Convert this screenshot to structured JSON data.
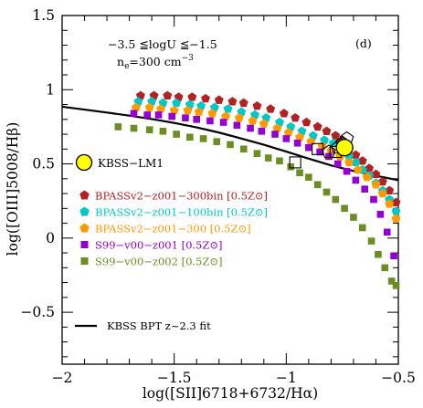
{
  "chart_data": {
    "type": "scatter",
    "xlabel": "log([SII]6718+6732/Hα)",
    "ylabel": "log([OIII]5008/Hβ)",
    "xlim": [
      -2.0,
      -0.5
    ],
    "ylim": [
      -0.85,
      1.5
    ],
    "xticks": [
      "−2",
      "−1.5",
      "−1",
      "−0.5"
    ],
    "yticks": [
      "−0.5",
      "0",
      "0.5",
      "1",
      "1.5"
    ],
    "annotations": {
      "logU": "−3.5 ≦logU ≦−1.5",
      "density": "ne=300 cm⁻³",
      "panel": "(d)"
    },
    "kbss_point": {
      "name": "KBSS−LM1",
      "x": -0.74,
      "y": 0.61,
      "color": "#ffff00"
    },
    "fit_line": {
      "name": "KBSS BPT z~2.3 fit",
      "color": "#000000",
      "x": [
        -2.0,
        -1.9,
        -1.8,
        -1.7,
        -1.6,
        -1.5,
        -1.4,
        -1.3,
        -1.2,
        -1.1,
        -1.0,
        -0.9,
        -0.8,
        -0.7,
        -0.6,
        -0.5
      ],
      "y": [
        0.885,
        0.866,
        0.846,
        0.825,
        0.802,
        0.776,
        0.746,
        0.711,
        0.671,
        0.629,
        0.583,
        0.535,
        0.49,
        0.452,
        0.42,
        0.39
      ]
    },
    "series": [
      {
        "name": "BPASSv2−z001−300bin [0.5Z⊙]",
        "color": "#b22222",
        "marker": "pentagon",
        "x": [
          -1.65,
          -1.59,
          -1.53,
          -1.48,
          -1.42,
          -1.36,
          -1.3,
          -1.24,
          -1.19,
          -1.13,
          -1.07,
          -1.01,
          -0.96,
          -0.91,
          -0.86,
          -0.82,
          -0.78,
          -0.75,
          -0.72,
          -0.69,
          -0.66,
          -0.63,
          -0.6,
          -0.57,
          -0.54,
          -0.51,
          -0.49
        ],
        "y": [
          0.96,
          0.96,
          0.96,
          0.95,
          0.95,
          0.94,
          0.93,
          0.92,
          0.91,
          0.89,
          0.87,
          0.84,
          0.81,
          0.78,
          0.75,
          0.72,
          0.69,
          0.66,
          0.6,
          0.56,
          0.52,
          0.47,
          0.43,
          0.38,
          0.32,
          0.24,
          0.14
        ]
      },
      {
        "name": "BPASSv2−z001−100bin [0.5Z⊙]",
        "color": "#00c8c8",
        "marker": "pentagon",
        "x": [
          -1.66,
          -1.6,
          -1.55,
          -1.49,
          -1.43,
          -1.38,
          -1.32,
          -1.26,
          -1.2,
          -1.14,
          -1.09,
          -1.03,
          -0.98,
          -0.93,
          -0.88,
          -0.83,
          -0.79,
          -0.75,
          -0.72,
          -0.69,
          -0.66,
          -0.63,
          -0.6,
          -0.57,
          -0.54,
          -0.51,
          -0.49
        ],
        "y": [
          0.92,
          0.92,
          0.91,
          0.91,
          0.9,
          0.89,
          0.88,
          0.87,
          0.85,
          0.83,
          0.81,
          0.78,
          0.75,
          0.72,
          0.69,
          0.66,
          0.64,
          0.6,
          0.55,
          0.51,
          0.46,
          0.42,
          0.37,
          0.32,
          0.26,
          0.18,
          0.08
        ]
      },
      {
        "name": "BPASSv2−z001−300 [0.5Z⊙]",
        "color": "#ff9900",
        "marker": "pentagon",
        "x": [
          -1.67,
          -1.61,
          -1.56,
          -1.5,
          -1.44,
          -1.39,
          -1.33,
          -1.27,
          -1.21,
          -1.15,
          -1.1,
          -1.04,
          -0.99,
          -0.94,
          -0.89,
          -0.84,
          -0.8,
          -0.76,
          -0.72,
          -0.68,
          -0.64,
          -0.6,
          -0.57,
          -0.54,
          -0.51,
          -0.49
        ],
        "y": [
          0.88,
          0.88,
          0.87,
          0.86,
          0.86,
          0.85,
          0.84,
          0.82,
          0.81,
          0.79,
          0.77,
          0.74,
          0.71,
          0.68,
          0.65,
          0.62,
          0.59,
          0.55,
          0.51,
          0.46,
          0.41,
          0.36,
          0.3,
          0.23,
          0.13,
          0.03
        ]
      },
      {
        "name": "S99−v00−z001 [0.5Z⊙]",
        "color": "#9400d3",
        "marker": "square",
        "x": [
          -1.68,
          -1.62,
          -1.57,
          -1.51,
          -1.45,
          -1.4,
          -1.34,
          -1.28,
          -1.22,
          -1.16,
          -1.11,
          -1.05,
          -1.0,
          -0.95,
          -0.9,
          -0.85,
          -0.81,
          -0.77,
          -0.73,
          -0.69,
          -0.65,
          -0.61,
          -0.58,
          -0.55,
          -0.52
        ],
        "y": [
          0.84,
          0.83,
          0.83,
          0.82,
          0.81,
          0.8,
          0.79,
          0.78,
          0.76,
          0.74,
          0.72,
          0.7,
          0.67,
          0.64,
          0.61,
          0.58,
          0.55,
          0.5,
          0.45,
          0.39,
          0.33,
          0.26,
          0.16,
          0.04,
          -0.12
        ]
      },
      {
        "name": "S99−v00−z002 [0.5Z⊙]",
        "color": "#6b8e23",
        "marker": "square",
        "x": [
          -1.75,
          -1.68,
          -1.61,
          -1.55,
          -1.49,
          -1.43,
          -1.37,
          -1.31,
          -1.25,
          -1.19,
          -1.13,
          -1.08,
          -1.03,
          -0.98,
          -0.94,
          -0.9,
          -0.86,
          -0.82,
          -0.78,
          -0.74,
          -0.7,
          -0.66,
          -0.62,
          -0.59,
          -0.56,
          -0.53,
          -0.51
        ],
        "y": [
          0.75,
          0.74,
          0.73,
          0.72,
          0.7,
          0.68,
          0.67,
          0.65,
          0.63,
          0.6,
          0.57,
          0.54,
          0.52,
          0.48,
          0.44,
          0.41,
          0.36,
          0.31,
          0.26,
          0.2,
          0.14,
          0.07,
          -0.02,
          -0.11,
          -0.2,
          -0.29,
          -0.32
        ]
      }
    ],
    "open_markers": [
      {
        "shape": "square",
        "x": -0.96,
        "y": 0.51
      },
      {
        "shape": "square",
        "x": -0.86,
        "y": 0.6
      },
      {
        "shape": "pentagon",
        "x": -0.81,
        "y": 0.58
      },
      {
        "shape": "square",
        "x": -0.78,
        "y": 0.58
      },
      {
        "shape": "pentagon",
        "x": -0.77,
        "y": 0.61
      },
      {
        "shape": "pentagon",
        "x": -0.75,
        "y": 0.64
      },
      {
        "shape": "pentagon",
        "x": -0.73,
        "y": 0.67
      }
    ]
  }
}
